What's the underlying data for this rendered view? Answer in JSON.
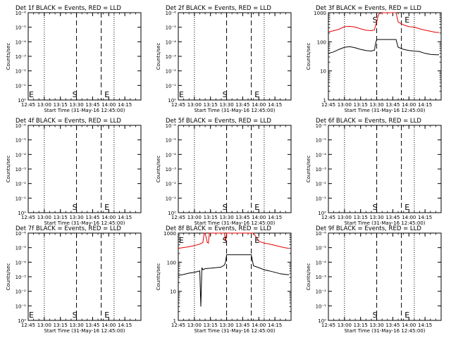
{
  "chart_data": [
    {
      "type": "line",
      "title": "Det 1f BLACK = Events, RED = LLD",
      "xlabel": "Start Time (31-May-16 12:45:00)",
      "ylabel": "Counts/sec",
      "scale_y": "log",
      "xlim": [
        "12:45",
        "14:30"
      ],
      "x_ticks": [
        "12:45",
        "13:00",
        "13:15",
        "13:30",
        "13:45",
        "14:00",
        "14:15"
      ],
      "y_ticks": [
        "10⁰",
        "10⁻¹",
        "10⁻²",
        "10⁻³",
        "10⁻⁴",
        "10⁻⁵",
        "10⁻⁶"
      ],
      "markers": [
        {
          "label": "S",
          "x": "13:30"
        },
        {
          "label": "E",
          "x": "14:00"
        }
      ],
      "edge_marker": "E",
      "vlines_dotted": [
        "13:00",
        "14:05"
      ],
      "vlines_dashed": [
        "13:30",
        "13:53"
      ],
      "series": []
    },
    {
      "type": "line",
      "title": "Det 2f BLACK = Events, RED = LLD",
      "xlabel": "Start Time (31-May-16 12:45:00)",
      "ylabel": "Counts/sec",
      "scale_y": "log",
      "xlim": [
        "12:45",
        "14:30"
      ],
      "x_ticks": [
        "12:45",
        "13:00",
        "13:15",
        "13:30",
        "13:45",
        "14:00",
        "14:15"
      ],
      "y_ticks": [
        "10⁰",
        "10⁻¹",
        "10⁻²",
        "10⁻³",
        "10⁻⁴",
        "10⁻⁵",
        "10⁻⁶"
      ],
      "markers": [
        {
          "label": "S",
          "x": "13:30"
        },
        {
          "label": "E",
          "x": "14:00"
        }
      ],
      "edge_marker": "E",
      "vlines_dotted": [
        "13:00",
        "14:05"
      ],
      "vlines_dashed": [
        "13:30",
        "13:53"
      ],
      "series": []
    },
    {
      "type": "line",
      "title": "Det 3f BLACK = Events, RED = LLD",
      "xlabel": "Start Time (31-May-16 12:45:00)",
      "ylabel": "Counts/sec",
      "scale_y": "log",
      "xlim": [
        "12:45",
        "14:30"
      ],
      "ylim": [
        1,
        1000
      ],
      "x_ticks": [
        "12:45",
        "13:00",
        "13:15",
        "13:30",
        "13:45",
        "14:00",
        "14:15"
      ],
      "y_ticks": [
        "1",
        "10",
        "100",
        "1000"
      ],
      "markers": [
        {
          "label": "S",
          "x": "13:30"
        },
        {
          "label": "E",
          "x": "14:00"
        }
      ],
      "edge_marker": "",
      "vlines_dotted": [
        "13:00",
        "14:05"
      ],
      "vlines_dashed": [
        "13:30",
        "13:53"
      ],
      "series": [
        {
          "color": "#e60000",
          "x": [
            "12:45",
            "12:50",
            "12:55",
            "13:00",
            "13:05",
            "13:10",
            "13:15",
            "13:20",
            "13:25",
            "13:28",
            "13:29",
            "13:30",
            "13:31",
            "13:32",
            "13:35",
            "13:38",
            "13:40",
            "13:42",
            "13:44",
            "13:46",
            "13:48",
            "13:50",
            "13:55",
            "14:00",
            "14:05",
            "14:10",
            "14:15",
            "14:20",
            "14:25",
            "14:28"
          ],
          "y": [
            220,
            240,
            270,
            330,
            340,
            320,
            280,
            250,
            240,
            260,
            380,
            480,
            700,
            900,
            1000,
            1000,
            1000,
            1000,
            1000,
            1000,
            1000,
            480,
            380,
            330,
            320,
            280,
            250,
            230,
            210,
            210
          ]
        },
        {
          "color": "#000000",
          "x": [
            "12:45",
            "12:50",
            "12:55",
            "13:00",
            "13:05",
            "13:10",
            "13:15",
            "13:20",
            "13:25",
            "13:28",
            "13:29",
            "13:30",
            "13:48",
            "13:50",
            "13:55",
            "14:00",
            "14:05",
            "14:10",
            "14:15",
            "14:20",
            "14:25",
            "14:28"
          ],
          "y": [
            40,
            45,
            55,
            65,
            68,
            62,
            55,
            50,
            48,
            52,
            90,
            120,
            120,
            65,
            55,
            50,
            48,
            46,
            40,
            37,
            36,
            36
          ]
        }
      ]
    },
    {
      "type": "line",
      "title": "Det 4f BLACK = Events, RED = LLD",
      "xlabel": "Start Time (31-May-16 12:45:00)",
      "ylabel": "Counts/sec",
      "scale_y": "log",
      "xlim": [
        "12:45",
        "14:30"
      ],
      "x_ticks": [
        "12:45",
        "13:00",
        "13:15",
        "13:30",
        "13:45",
        "14:00",
        "14:15"
      ],
      "y_ticks": [
        "10⁰",
        "10⁻¹",
        "10⁻²",
        "10⁻³",
        "10⁻⁴",
        "10⁻⁵",
        "10⁻⁶"
      ],
      "markers": [
        {
          "label": "S",
          "x": "13:30"
        },
        {
          "label": "E",
          "x": "14:00"
        }
      ],
      "edge_marker": "",
      "vlines_dotted": [
        "13:00",
        "14:05"
      ],
      "vlines_dashed": [
        "13:30",
        "13:53"
      ],
      "series": []
    },
    {
      "type": "line",
      "title": "Det 5f BLACK = Events, RED = LLD",
      "xlabel": "Start Time (31-May-16 12:45:00)",
      "ylabel": "Counts/sec",
      "scale_y": "log",
      "xlim": [
        "12:45",
        "14:30"
      ],
      "x_ticks": [
        "12:45",
        "13:00",
        "13:15",
        "13:30",
        "13:45",
        "14:00",
        "14:15"
      ],
      "y_ticks": [
        "10⁰",
        "10⁻¹",
        "10⁻²",
        "10⁻³",
        "10⁻⁴",
        "10⁻⁵",
        "10⁻⁶"
      ],
      "markers": [
        {
          "label": "S",
          "x": "13:30"
        },
        {
          "label": "E",
          "x": "14:00"
        }
      ],
      "edge_marker": "",
      "vlines_dotted": [
        "13:00",
        "14:05"
      ],
      "vlines_dashed": [
        "13:30",
        "13:53"
      ],
      "series": []
    },
    {
      "type": "line",
      "title": "Det 6f BLACK = Events, RED = LLD",
      "xlabel": "Start Time (31-May-16 12:45:00)",
      "ylabel": "Counts/sec",
      "scale_y": "log",
      "xlim": [
        "12:45",
        "14:30"
      ],
      "x_ticks": [
        "12:45",
        "13:00",
        "13:15",
        "13:30",
        "13:45",
        "14:00",
        "14:15"
      ],
      "y_ticks": [
        "10⁰",
        "10⁻¹",
        "10⁻²",
        "10⁻³",
        "10⁻⁴",
        "10⁻⁵",
        "10⁻⁶"
      ],
      "markers": [
        {
          "label": "S",
          "x": "13:30"
        },
        {
          "label": "E",
          "x": "14:00"
        }
      ],
      "edge_marker": "",
      "vlines_dotted": [
        "13:00",
        "14:05"
      ],
      "vlines_dashed": [
        "13:30",
        "13:53"
      ],
      "series": []
    },
    {
      "type": "line",
      "title": "Det 7f BLACK = Events, RED = LLD",
      "xlabel": "Start Time (31-May-16 12:45:00)",
      "ylabel": "Counts/sec",
      "scale_y": "log",
      "xlim": [
        "12:45",
        "14:30"
      ],
      "x_ticks": [
        "12:45",
        "13:00",
        "13:15",
        "13:30",
        "13:45",
        "14:00",
        "14:15"
      ],
      "y_ticks": [
        "10⁰",
        "10⁻¹",
        "10⁻²",
        "10⁻³",
        "10⁻⁴",
        "10⁻⁵",
        "10⁻⁶"
      ],
      "markers": [
        {
          "label": "S",
          "x": "13:30"
        },
        {
          "label": "E",
          "x": "14:00"
        }
      ],
      "edge_marker": "E",
      "vlines_dotted": [
        "13:00",
        "14:05"
      ],
      "vlines_dashed": [
        "13:30",
        "13:53"
      ],
      "series": []
    },
    {
      "type": "line",
      "title": "Det 8f BLACK = Events, RED = LLD",
      "xlabel": "Start Time (31-May-16 12:45:00)",
      "ylabel": "Counts/sec",
      "scale_y": "log",
      "xlim": [
        "12:45",
        "14:30"
      ],
      "ylim": [
        1,
        1000
      ],
      "x_ticks": [
        "12:45",
        "13:00",
        "13:15",
        "13:30",
        "13:45",
        "14:00",
        "14:15"
      ],
      "y_ticks": [
        "1",
        "10",
        "100",
        "1000"
      ],
      "markers": [
        {
          "label": "S",
          "x": "13:30"
        },
        {
          "label": "E",
          "x": "14:00"
        }
      ],
      "edge_marker": "E",
      "vlines_dotted": [
        "13:00",
        "14:05"
      ],
      "vlines_dashed": [
        "13:30",
        "13:53"
      ],
      "series": [
        {
          "color": "#e60000",
          "x": [
            "12:45",
            "12:50",
            "12:55",
            "13:00",
            "13:05",
            "13:08",
            "13:09",
            "13:10",
            "13:12",
            "13:13",
            "13:14",
            "13:15",
            "13:20",
            "13:25",
            "13:28",
            "13:29",
            "13:30",
            "13:35",
            "13:40",
            "13:44",
            "13:46",
            "13:48",
            "13:50",
            "13:55",
            "14:00",
            "14:05",
            "14:10",
            "14:15",
            "14:20",
            "14:25",
            "14:28"
          ],
          "y": [
            300,
            320,
            340,
            370,
            420,
            480,
            1000,
            1000,
            480,
            450,
            1000,
            1000,
            1000,
            1000,
            1000,
            520,
            1000,
            1000,
            1000,
            1000,
            1000,
            1000,
            1000,
            1000,
            520,
            450,
            420,
            380,
            340,
            310,
            300
          ]
        },
        {
          "color": "#000000",
          "x": [
            "12:45",
            "12:50",
            "12:55",
            "13:00",
            "13:05",
            "13:06",
            "13:07",
            "13:08",
            "13:10",
            "13:15",
            "13:20",
            "13:25",
            "13:28",
            "13:29",
            "13:30",
            "13:53",
            "13:55",
            "14:00",
            "14:05",
            "14:10",
            "14:15",
            "14:20",
            "14:25",
            "14:28"
          ],
          "y": [
            35,
            38,
            42,
            45,
            50,
            3,
            65,
            55,
            60,
            62,
            65,
            68,
            80,
            100,
            180,
            180,
            75,
            65,
            55,
            50,
            45,
            40,
            38,
            37
          ]
        }
      ]
    },
    {
      "type": "line",
      "title": "Det 9f BLACK = Events, RED = LLD",
      "xlabel": "Start Time (31-May-16 12:45:00)",
      "ylabel": "Counts/sec",
      "scale_y": "log",
      "xlim": [
        "12:45",
        "14:30"
      ],
      "x_ticks": [
        "12:45",
        "13:00",
        "13:15",
        "13:30",
        "13:45",
        "14:00",
        "14:15"
      ],
      "y_ticks": [
        "10⁰",
        "10⁻¹",
        "10⁻²",
        "10⁻³",
        "10⁻⁴",
        "10⁻⁵",
        "10⁻⁶"
      ],
      "markers": [
        {
          "label": "S",
          "x": "13:30"
        },
        {
          "label": "E",
          "x": "14:00"
        }
      ],
      "edge_marker": "",
      "vlines_dotted": [
        "13:00",
        "14:05"
      ],
      "vlines_dashed": [
        "13:30",
        "13:53"
      ],
      "series": []
    }
  ]
}
